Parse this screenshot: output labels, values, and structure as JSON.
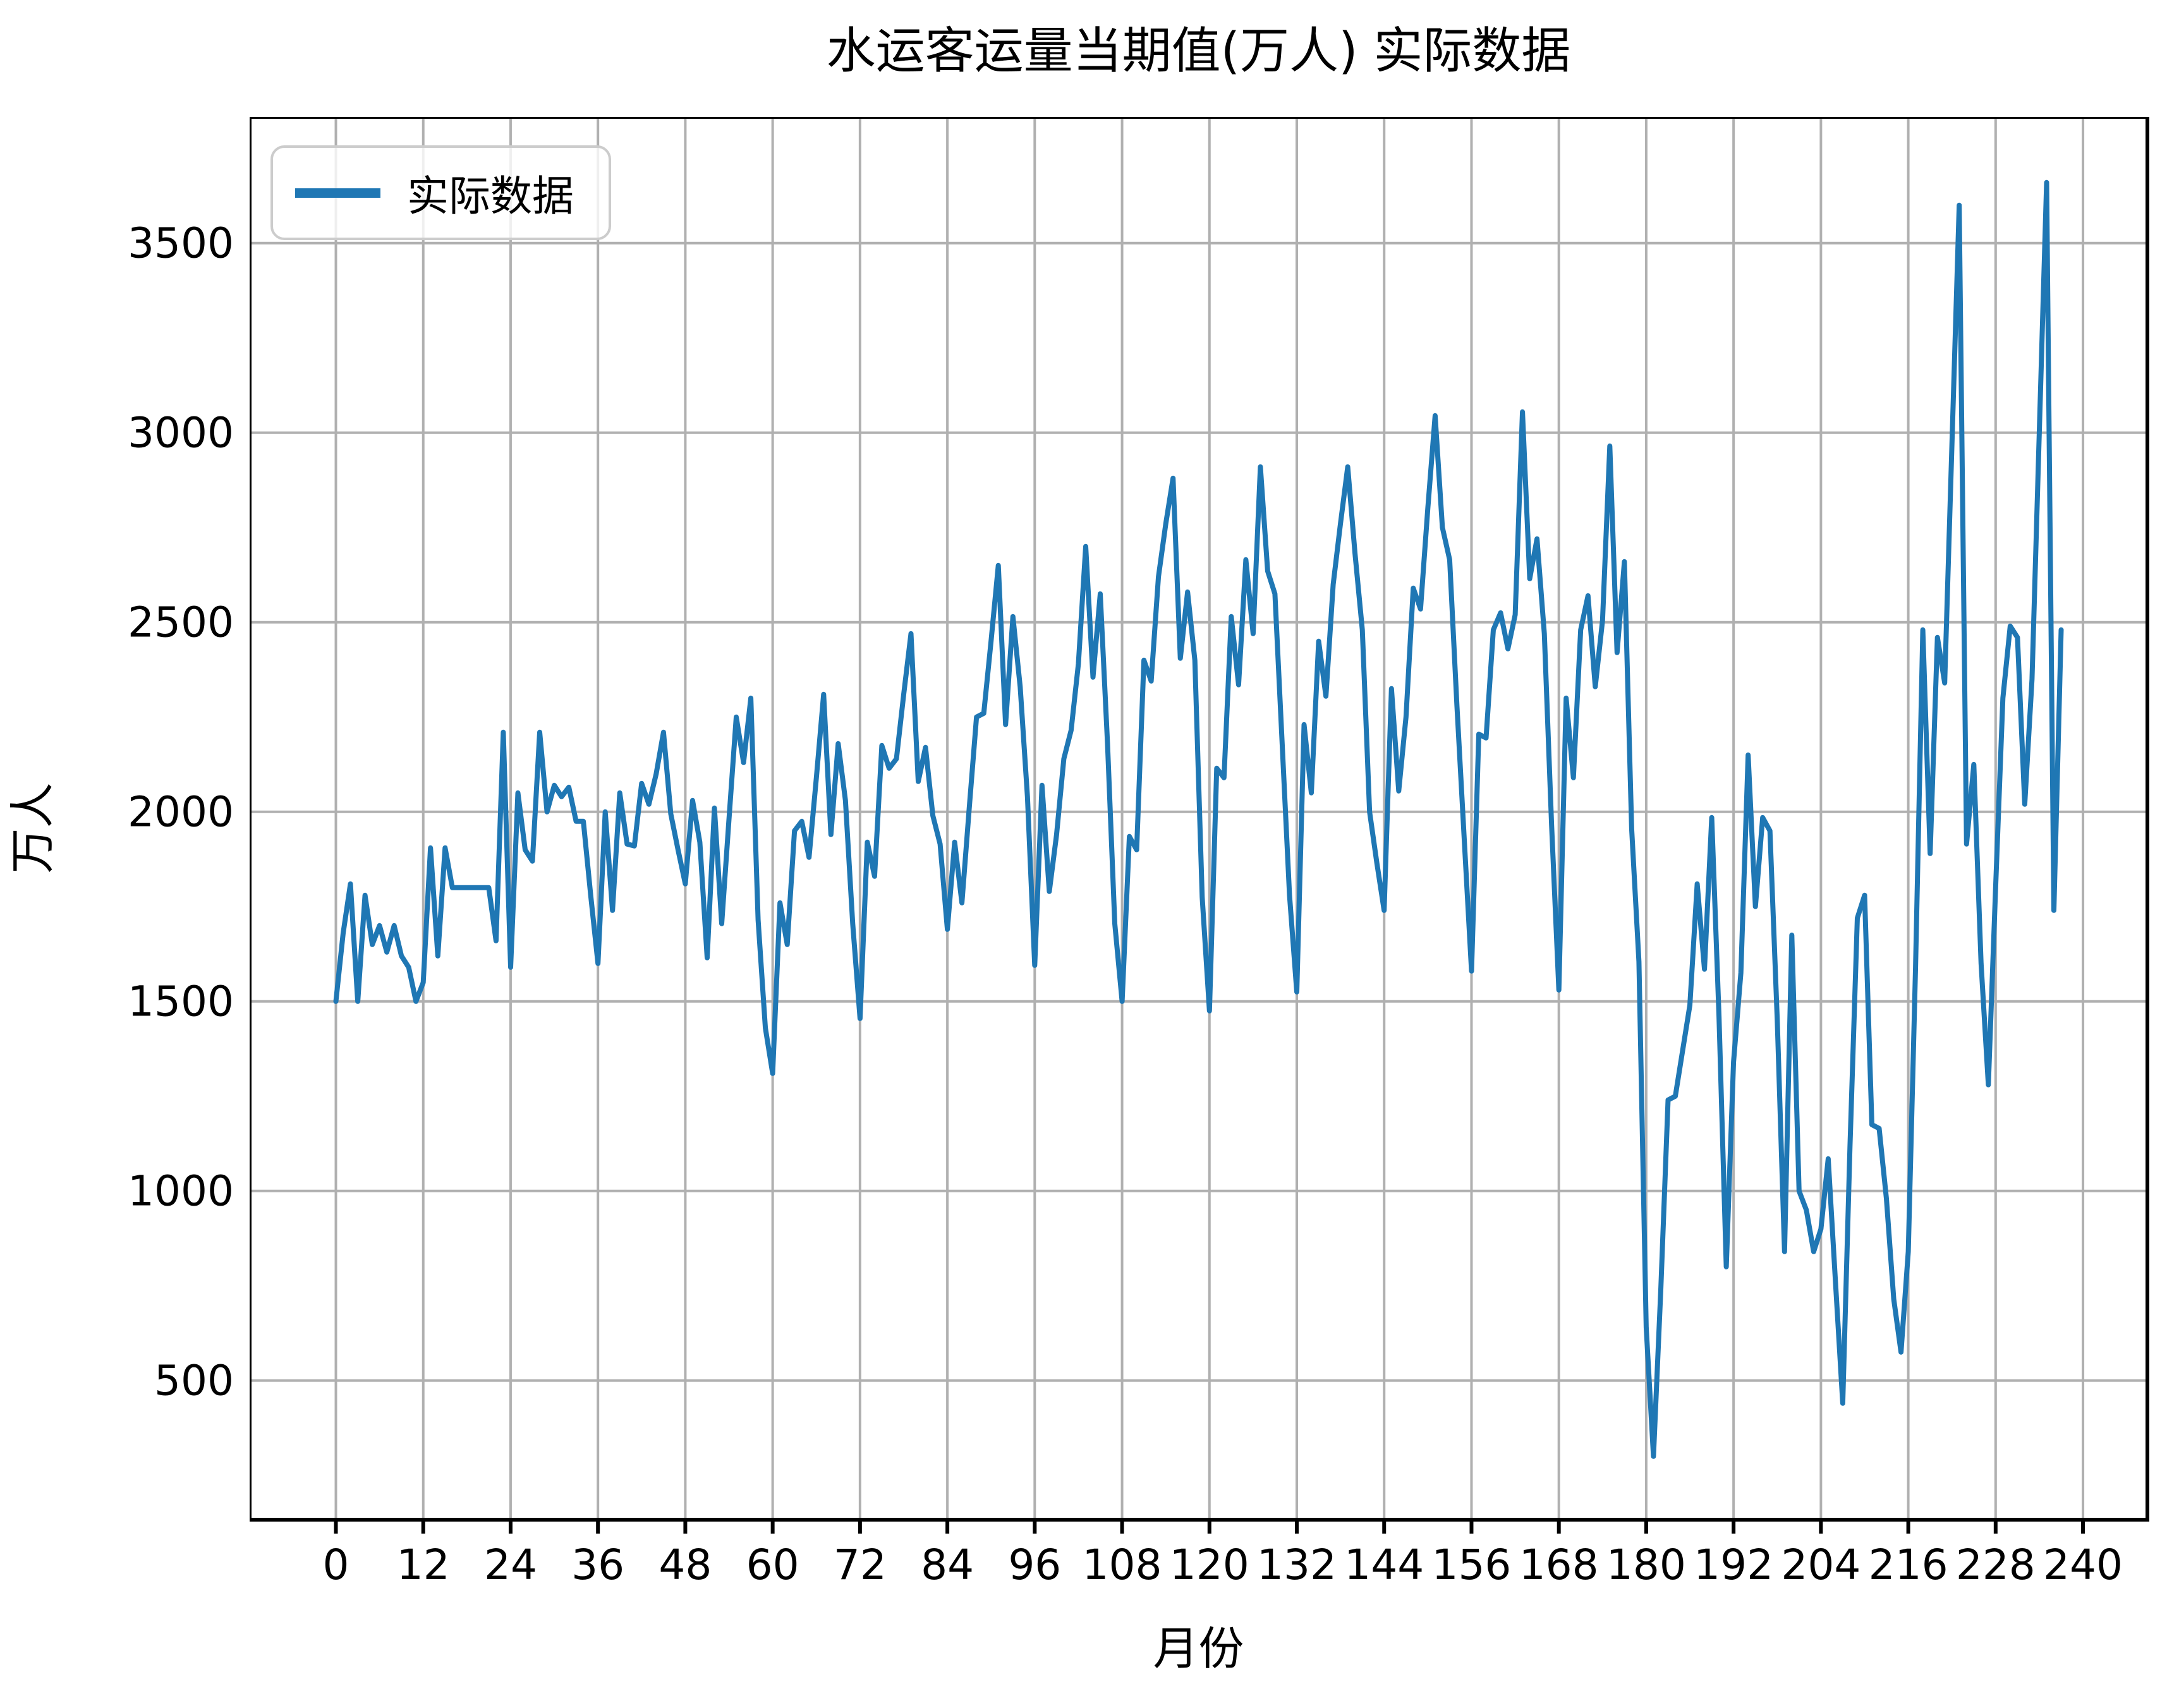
{
  "title": "水运客运量当期值(万人) 实际数据",
  "legend": {
    "label": "实际数据",
    "line_color": "#1f77b4"
  },
  "axes": {
    "x_label": "月份",
    "y_label": "万人",
    "x_ticks": [
      0,
      12,
      24,
      36,
      48,
      60,
      72,
      84,
      96,
      108,
      120,
      132,
      144,
      156,
      168,
      180,
      192,
      204,
      216,
      228,
      240
    ],
    "y_ticks": [
      500,
      1000,
      1500,
      2000,
      2500,
      3000,
      3500
    ]
  },
  "style": {
    "line_color": "#1f77b4",
    "grid_color": "#b0b0b0",
    "spine_color": "#000000",
    "background": "#ffffff"
  },
  "chart_data": {
    "type": "line",
    "title": "水运客运量当期值(万人) 实际数据",
    "xlabel": "月份",
    "ylabel": "万人",
    "xlim": [
      -11.85,
      248.85
    ],
    "ylim": [
      133,
      3833
    ],
    "grid": true,
    "legend_position": "upper left",
    "x_start": 0,
    "x_step": 1,
    "series": [
      {
        "name": "实际数据",
        "color": "#1f77b4",
        "values": [
          1500,
          1680,
          1810,
          1500,
          1780,
          1650,
          1700,
          1630,
          1700,
          1620,
          1590,
          1500,
          1550,
          1905,
          1620,
          1905,
          1800,
          1800,
          1800,
          1800,
          1800,
          1800,
          1660,
          2210,
          1590,
          2050,
          1900,
          1870,
          2210,
          2000,
          2070,
          2040,
          2065,
          1975,
          1975,
          1780,
          1600,
          2000,
          1740,
          2050,
          1915,
          1910,
          2075,
          2020,
          2100,
          2210,
          1995,
          1900,
          1810,
          2030,
          1920,
          1615,
          2010,
          1705,
          1980,
          2250,
          2130,
          2300,
          1715,
          1430,
          1310,
          1760,
          1650,
          1950,
          1975,
          1880,
          2090,
          2310,
          1940,
          2180,
          2030,
          1705,
          1455,
          1920,
          1830,
          2175,
          2115,
          2140,
          2310,
          2470,
          2080,
          2170,
          1990,
          1915,
          1690,
          1920,
          1760,
          2010,
          2250,
          2260,
          2450,
          2650,
          2230,
          2515,
          2330,
          2040,
          1595,
          2070,
          1790,
          1940,
          2140,
          2215,
          2390,
          2700,
          2355,
          2575,
          2180,
          1705,
          1500,
          1935,
          1900,
          2400,
          2345,
          2620,
          2760,
          2880,
          2405,
          2580,
          2400,
          1775,
          1475,
          2115,
          2090,
          2515,
          2335,
          2665,
          2470,
          2910,
          2635,
          2575,
          2175,
          1780,
          1525,
          2230,
          2050,
          2450,
          2305,
          2600,
          2760,
          2910,
          2680,
          2480,
          2000,
          1865,
          1740,
          2325,
          2055,
          2250,
          2590,
          2535,
          2800,
          3045,
          2750,
          2665,
          2280,
          1930,
          1580,
          2205,
          2195,
          2480,
          2525,
          2430,
          2520,
          3055,
          2615,
          2720,
          2470,
          1965,
          1530,
          2300,
          2090,
          2480,
          2570,
          2330,
          2505,
          2965,
          2420,
          2660,
          1955,
          1605,
          640,
          300,
          740,
          1240,
          1250,
          1370,
          1490,
          1810,
          1585,
          1985,
          1460,
          800,
          1340,
          1575,
          2150,
          1750,
          1985,
          1950,
          1450,
          840,
          1675,
          1000,
          950,
          840,
          900,
          1085,
          760,
          440,
          1120,
          1720,
          1780,
          1175,
          1165,
          980,
          715,
          575,
          840,
          1590,
          2480,
          1890,
          2460,
          2340,
          2970,
          3600,
          1915,
          2125,
          1600,
          1280,
          1800,
          2300,
          2490,
          2460,
          2020,
          2350,
          3000,
          3660,
          1740,
          2480
        ]
      }
    ]
  }
}
